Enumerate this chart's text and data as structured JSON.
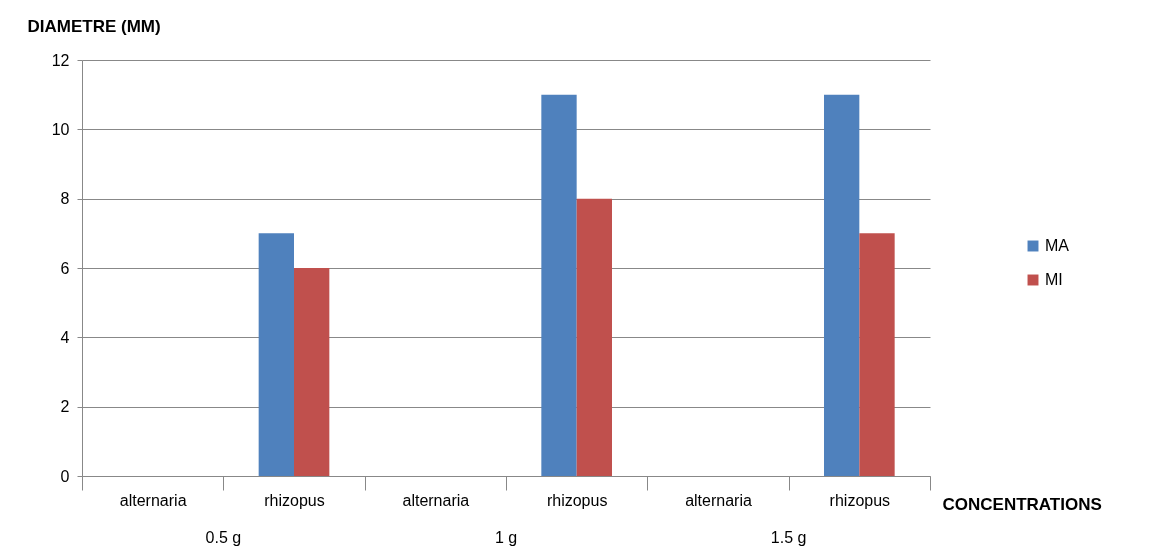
{
  "chart_data": {
    "type": "bar",
    "ylabel": "DIAMETRE (MM)",
    "xlabel": "CONCENTRATIONS",
    "categories": [
      "alternaria",
      "rhizopus",
      "alternaria",
      "rhizopus",
      "alternaria",
      "rhizopus"
    ],
    "series": [
      {
        "name": "MA",
        "color": "#4f81bd",
        "values": [
          0,
          7,
          0,
          11,
          0,
          11
        ]
      },
      {
        "name": "MI",
        "color": "#c0504d",
        "values": [
          0,
          6,
          0,
          8,
          0,
          7
        ]
      }
    ],
    "annotations": [
      "0.5 g",
      "1 g",
      "1.5 g"
    ],
    "ylim": [
      0,
      12
    ],
    "yticks": [
      0,
      2,
      4,
      6,
      8,
      10,
      12
    ],
    "grid": "y",
    "legend": "right"
  }
}
